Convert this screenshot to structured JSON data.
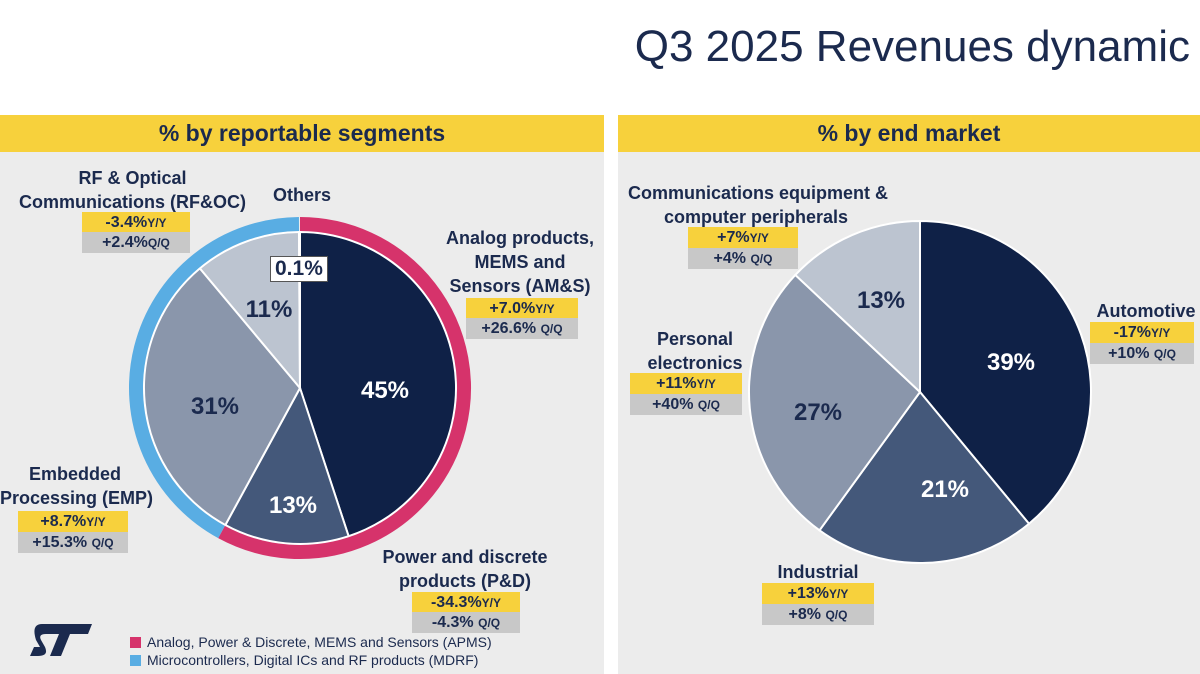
{
  "page_title": "Q3 2025 Revenues dynamic",
  "colors": {
    "navy": "#0f2147",
    "slate": "#44587a",
    "gray": "#8a96ab",
    "light": "#bcc4d0",
    "ring_apms": "#d6336b",
    "ring_mdrf": "#59ade3",
    "yellow": "#f7d13c",
    "chip_gray": "#c8c8c8"
  },
  "left_panel": {
    "title": "% by reportable segments",
    "segments": [
      {
        "label_lines": [
          "Analog products,",
          "MEMS and",
          "Sensors (AM&S)"
        ],
        "yoy": "+7.0%",
        "qoq": "+26.6%",
        "pct_label": "45%"
      },
      {
        "label_lines": [
          "Power and discrete",
          "products (P&D)"
        ],
        "yoy": "-34.3%",
        "qoq": "-4.3%",
        "pct_label": "13%"
      },
      {
        "label_lines": [
          "Embedded",
          "Processing (EMP)"
        ],
        "yoy": "+8.7%",
        "qoq": "+15.3%",
        "pct_label": "31%"
      },
      {
        "label_lines": [
          "RF & Optical",
          "Communications (RF&OC)"
        ],
        "yoy": "-3.4%",
        "qoq": "+2.4%",
        "pct_label": "11%"
      },
      {
        "label_lines": [
          "Others"
        ],
        "pct_label": "0.1%"
      }
    ],
    "legend": [
      {
        "label": "Analog, Power & Discrete, MEMS and Sensors (APMS)",
        "color": "#d6336b"
      },
      {
        "label": "Microcontrollers, Digital ICs and RF products (MDRF)",
        "color": "#59ade3"
      }
    ]
  },
  "right_panel": {
    "title": "% by end market",
    "segments": [
      {
        "label_lines": [
          "Automotive"
        ],
        "yoy": "-17%",
        "qoq": "+10%",
        "pct_label": "39%"
      },
      {
        "label_lines": [
          "Industrial"
        ],
        "yoy": "+13%",
        "qoq": "+8%",
        "pct_label": "21%"
      },
      {
        "label_lines": [
          "Personal",
          "electronics"
        ],
        "yoy": "+11%",
        "qoq": "+40%",
        "pct_label": "27%"
      },
      {
        "label_lines": [
          "Communications equipment &",
          "computer peripherals"
        ],
        "yoy": "+7%",
        "qoq": "+4%",
        "pct_label": "13%"
      }
    ]
  },
  "units": {
    "yoy": "Y/Y",
    "qoq": "Q/Q"
  },
  "logo_text": "ST",
  "chart_data": [
    {
      "type": "pie",
      "title": "% by reportable segments",
      "categories": [
        "AM&S",
        "P&D",
        "EMP",
        "RF&OC",
        "Others"
      ],
      "values": [
        45,
        13,
        31,
        11,
        0.1
      ],
      "rings": [
        {
          "name": "APMS",
          "values": [
            45,
            13
          ]
        },
        {
          "name": "MDRF",
          "values": [
            31,
            11
          ]
        }
      ]
    },
    {
      "type": "pie",
      "title": "% by end market",
      "categories": [
        "Automotive",
        "Industrial",
        "Personal electronics",
        "Communications equipment & computer peripherals"
      ],
      "values": [
        39,
        21,
        27,
        13
      ]
    }
  ]
}
